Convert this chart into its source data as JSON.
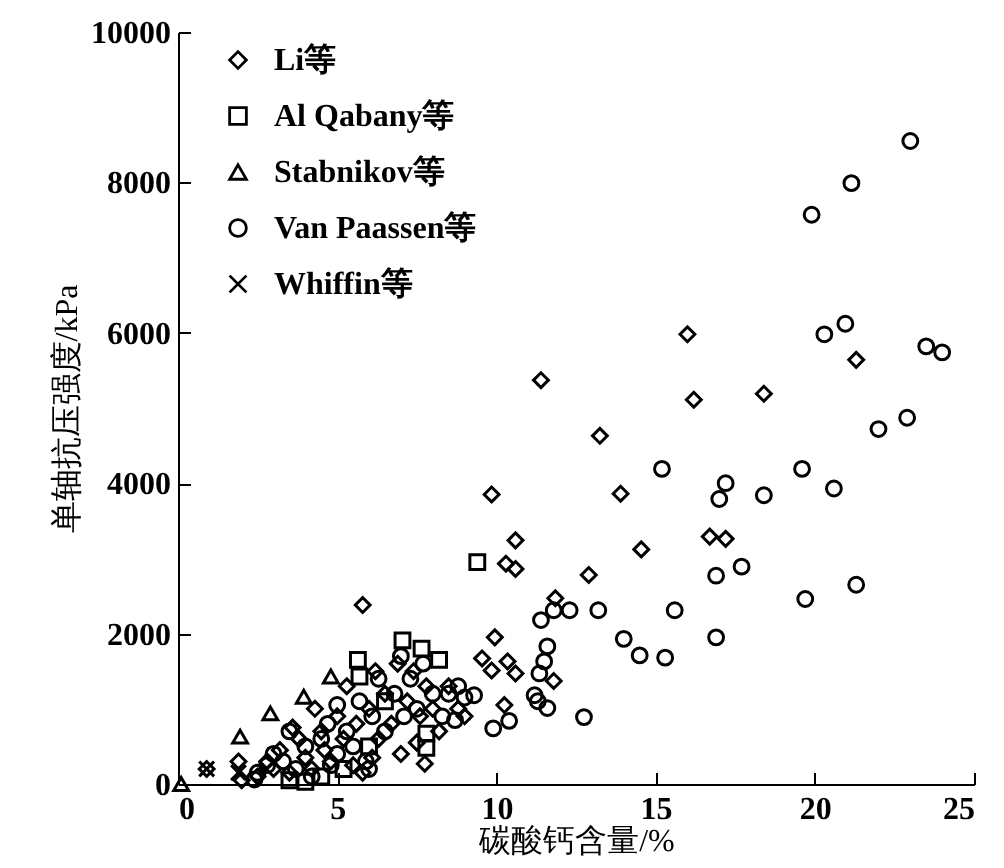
{
  "chart_data": {
    "type": "scatter",
    "xlabel": "碳酸钙含量/%",
    "ylabel": "单轴抗压强度/kPa",
    "xlim": [
      0,
      25
    ],
    "xticks": [
      0,
      5,
      10,
      15,
      20,
      25
    ],
    "ylim": [
      0,
      10000
    ],
    "yticks": [
      0,
      2000,
      4000,
      6000,
      8000,
      10000
    ],
    "grid": false,
    "legend": "top left",
    "series": [
      {
        "name": "Li等",
        "color": "#000000",
        "marker": "diamond",
        "x": [
          16.0,
          11.4,
          21.3,
          16.2,
          18.4,
          13.25,
          9.85,
          13.9,
          10.6,
          14.55,
          16.7,
          17.2,
          10.3,
          10.6,
          12.9,
          11.85,
          5.8,
          9.95,
          9.55,
          9.85,
          10.35,
          10.6,
          11.8,
          10.25,
          7.75,
          0.9,
          1.9,
          2.0,
          2.5,
          2.8,
          3.0,
          3.2,
          3.5,
          3.8,
          4.0,
          4.2,
          4.5,
          4.6,
          4.8,
          5.0,
          5.2,
          5.3,
          5.5,
          5.6,
          5.8,
          6.0,
          6.2,
          6.3,
          6.5,
          6.7,
          6.9,
          7.0,
          7.2,
          7.4,
          7.6,
          7.8,
          8.0,
          8.2,
          8.5,
          8.8,
          9.0,
          7.5,
          6.1,
          4.3,
          3.6
        ],
        "values": [
          5980,
          5370,
          5640,
          5110,
          5190,
          4630,
          3850,
          3860,
          3240,
          3120,
          3290,
          3260,
          2930,
          2860,
          2780,
          2470,
          2380,
          1950,
          1670,
          1510,
          1630,
          1470,
          1370,
          1050,
          270,
          200,
          300,
          50,
          100,
          300,
          200,
          450,
          150,
          600,
          350,
          200,
          700,
          450,
          300,
          900,
          600,
          1300,
          250,
          800,
          150,
          1000,
          1500,
          600,
          1200,
          800,
          1600,
          400,
          1100,
          1500,
          900,
          1300,
          1000,
          700,
          1300,
          1000,
          900,
          550,
          350,
          1000,
          750
        ]
      },
      {
        "name": "Al Qabany等",
        "color": "#000000",
        "marker": "square",
        "x": [
          9.4,
          7.05,
          7.65,
          8.2,
          5.65,
          5.7,
          7.8,
          7.8,
          3.5,
          4.0,
          4.5,
          5.2,
          6.0,
          6.5
        ],
        "values": [
          2950,
          1910,
          1800,
          1650,
          1650,
          1430,
          670,
          480,
          50,
          30,
          100,
          200,
          500,
          1100
        ]
      },
      {
        "name": "Stabnikov等",
        "color": "#000000",
        "marker": "triangle",
        "x": [
          0.1,
          1.95,
          2.9,
          3.95,
          4.8
        ],
        "values": [
          0,
          630,
          940,
          1160,
          1430
        ]
      },
      {
        "name": "Van Paassen等",
        "color": "#000000",
        "marker": "circle",
        "x": [
          23.0,
          21.15,
          19.9,
          20.96,
          20.3,
          23.5,
          24.0,
          22.0,
          22.9,
          19.6,
          20.6,
          15.2,
          17.2,
          17.0,
          18.4,
          16.9,
          17.7,
          21.3,
          19.7,
          15.6,
          13.2,
          12.3,
          11.8,
          11.4,
          14.0,
          14.5,
          15.3,
          16.9,
          12.75,
          11.6,
          11.5,
          11.35,
          11.2,
          11.3,
          11.6,
          10.4,
          9.9,
          9.3,
          2.4,
          2.5,
          2.8,
          3.0,
          3.3,
          3.5,
          3.7,
          4.0,
          4.2,
          4.5,
          4.7,
          5.0,
          5.0,
          5.3,
          5.5,
          5.7,
          5.9,
          6.1,
          6.3,
          6.5,
          6.8,
          7.0,
          7.1,
          7.3,
          7.5,
          7.7,
          8.0,
          8.3,
          8.5,
          8.8,
          9.0,
          8.7,
          6.0,
          4.8
        ],
        "values": [
          8550,
          7990,
          7570,
          6120,
          5980,
          5820,
          5740,
          4720,
          4870,
          4190,
          3930,
          4190,
          4000,
          3790,
          3840,
          2770,
          2890,
          2650,
          2460,
          2310,
          2310,
          2310,
          2310,
          2180,
          1930,
          1710,
          1680,
          1950,
          890,
          1830,
          1630,
          1470,
          1180,
          1100,
          1010,
          840,
          740,
          1180,
          60,
          150,
          250,
          400,
          300,
          700,
          200,
          500,
          100,
          600,
          800,
          400,
          1050,
          700,
          500,
          1100,
          300,
          900,
          1400,
          700,
          1200,
          1700,
          900,
          1400,
          1000,
          1600,
          1200,
          900,
          1200,
          1300,
          1150,
          850,
          200,
          250
        ]
      },
      {
        "name": "Whiffin等",
        "color": "#000000",
        "marker": "cross",
        "x": [
          0.9,
          1.9
        ],
        "values": [
          200,
          150
        ]
      }
    ]
  }
}
